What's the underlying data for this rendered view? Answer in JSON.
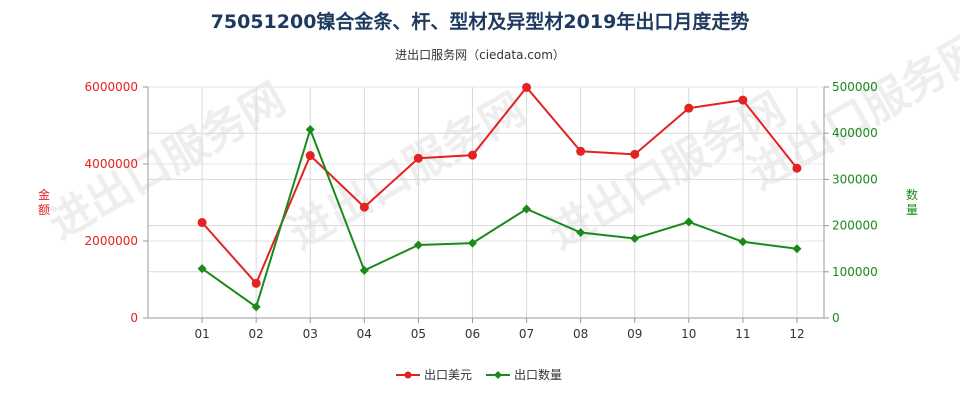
{
  "chart_data": {
    "type": "line",
    "title": "75051200镍合金条、杆、型材及异型材2019年出口月度走势",
    "subtitle": "进出口服务网（ciedata.com）",
    "categories": [
      "01",
      "02",
      "03",
      "04",
      "05",
      "06",
      "07",
      "08",
      "09",
      "10",
      "11",
      "12"
    ],
    "series": [
      {
        "name": "出口美元",
        "axis": "left",
        "color": "#e32222",
        "values": [
          2480000,
          900000,
          4220000,
          2880000,
          4150000,
          4230000,
          5990000,
          4330000,
          4250000,
          5450000,
          5660000,
          3890000
        ]
      },
      {
        "name": "出口数量",
        "axis": "right",
        "color": "#1a8a1a",
        "values": [
          107000,
          24000,
          408000,
          103000,
          158000,
          162000,
          236000,
          185000,
          172000,
          208000,
          165000,
          150000
        ]
      }
    ],
    "y_left": {
      "label": "金额",
      "ticks": [
        "0",
        "2000000",
        "4000000",
        "6000000"
      ],
      "ylim": [
        0,
        6000000
      ]
    },
    "y_right": {
      "label": "数量",
      "ticks": [
        "0",
        "100000",
        "200000",
        "300000",
        "400000",
        "500000"
      ],
      "ylim": [
        0,
        500000
      ]
    },
    "grid": true,
    "legend_position": "bottom-center",
    "watermark_text": "进出口服务网"
  }
}
